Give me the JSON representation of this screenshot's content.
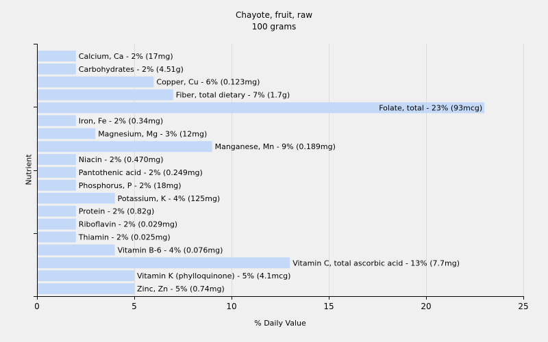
{
  "chart_data": {
    "type": "bar",
    "orientation": "horizontal",
    "title": "Chayote, fruit, raw",
    "subtitle": "100 grams",
    "xlabel": "% Daily Value",
    "ylabel": "Nutrient",
    "xlim": [
      0,
      25
    ],
    "xticks": [
      "0",
      "5",
      "10",
      "15",
      "20",
      "25"
    ],
    "grid": "vertical",
    "bar_color": "#c4d9f7",
    "categories": [
      "Calcium, Ca",
      "Carbohydrates",
      "Copper, Cu",
      "Fiber, total dietary",
      "Folate, total",
      "Iron, Fe",
      "Magnesium, Mg",
      "Manganese, Mn",
      "Niacin",
      "Pantothenic acid",
      "Phosphorus, P",
      "Potassium, K",
      "Protein",
      "Riboflavin",
      "Thiamin",
      "Vitamin B-6",
      "Vitamin C, total ascorbic acid",
      "Vitamin K (phylloquinone)",
      "Zinc, Zn"
    ],
    "values": [
      2,
      2,
      6,
      7,
      23,
      2,
      3,
      9,
      2,
      2,
      2,
      4,
      2,
      2,
      2,
      4,
      13,
      5,
      5
    ],
    "bar_labels": [
      "Calcium, Ca - 2% (17mg)",
      "Carbohydrates - 2% (4.51g)",
      "Copper, Cu - 6% (0.123mg)",
      "Fiber, total dietary - 7% (1.7g)",
      "Folate, total - 23% (93mcg)",
      "Iron, Fe - 2% (0.34mg)",
      "Magnesium, Mg - 3% (12mg)",
      "Manganese, Mn - 9% (0.189mg)",
      "Niacin - 2% (0.470mg)",
      "Pantothenic acid - 2% (0.249mg)",
      "Phosphorus, P - 2% (18mg)",
      "Potassium, K - 4% (125mg)",
      "Protein - 2% (0.82g)",
      "Riboflavin - 2% (0.029mg)",
      "Thiamin - 2% (0.025mg)",
      "Vitamin B-6 - 4% (0.076mg)",
      "Vitamin C, total ascorbic acid - 13% (7.7mg)",
      "Vitamin K (phylloquinone) - 5% (4.1mcg)",
      "Zinc, Zn - 5% (0.74mg)"
    ]
  }
}
